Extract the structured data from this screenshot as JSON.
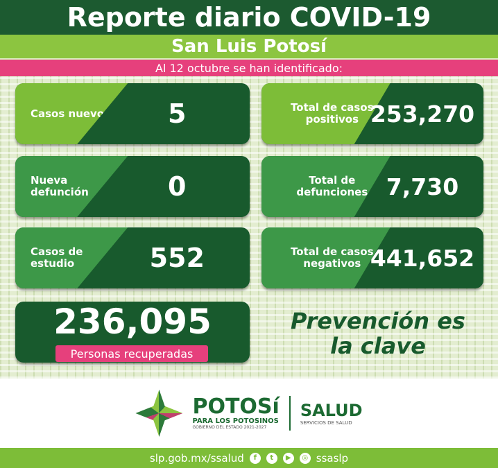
{
  "header": {
    "title": "Reporte diario COVID-19",
    "region": "San Luis Potosí",
    "date_line": "Al 12 octubre se han identificado:"
  },
  "stats_left": [
    {
      "label": "Casos nuevos",
      "value": "5"
    },
    {
      "label": "Nueva defunción",
      "value": "0"
    },
    {
      "label": "Casos de estudio",
      "value": "552"
    }
  ],
  "stats_right": [
    {
      "label": "Total de casos positivos",
      "value": "253,270"
    },
    {
      "label": "Total de defunciones",
      "value": "7,730"
    },
    {
      "label": "Total de casos negativos",
      "value": "441,652"
    }
  ],
  "recovered": {
    "value": "236,095",
    "label": "Personas recuperadas"
  },
  "slogan": "Prevención es la clave",
  "logos": {
    "potosi": "POTOSí",
    "para": "PARA LOS POTOSINOS",
    "gobierno": "GOBIERNO DEL ESTADO 2021-2027",
    "salud": "SALUD",
    "servicios": "SERVICIOS DE SALUD"
  },
  "footer": {
    "url": "slp.gob.mx/ssalud",
    "handle": "ssaslp",
    "icons": [
      "facebook-icon",
      "twitter-icon",
      "youtube-icon",
      "instagram-icon"
    ]
  },
  "colors": {
    "dark_green": "#1c5a30",
    "light_green": "#8cc540",
    "pink": "#e6407c",
    "mid_green": "#3d9848"
  }
}
